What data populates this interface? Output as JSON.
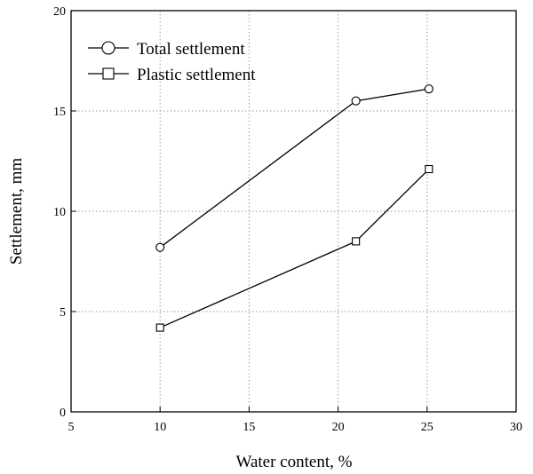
{
  "chart_data": {
    "type": "line",
    "title": "",
    "xlabel": "Water content, %",
    "ylabel": "Settlement, mm",
    "xlim": [
      5,
      30
    ],
    "ylim": [
      0,
      20
    ],
    "xticks": [
      5,
      10,
      15,
      20,
      25,
      30
    ],
    "yticks": [
      0,
      5,
      10,
      15,
      20
    ],
    "grid": true,
    "legend_position": "top-left",
    "series": [
      {
        "name": "Total settlement",
        "marker": "circle",
        "points": [
          {
            "x": 10,
            "y": 8.2
          },
          {
            "x": 21,
            "y": 15.5
          },
          {
            "x": 25.1,
            "y": 16.1
          }
        ]
      },
      {
        "name": "Plastic settlement",
        "marker": "square",
        "points": [
          {
            "x": 10,
            "y": 4.2
          },
          {
            "x": 21,
            "y": 8.5
          },
          {
            "x": 25.1,
            "y": 12.1
          }
        ]
      }
    ]
  }
}
